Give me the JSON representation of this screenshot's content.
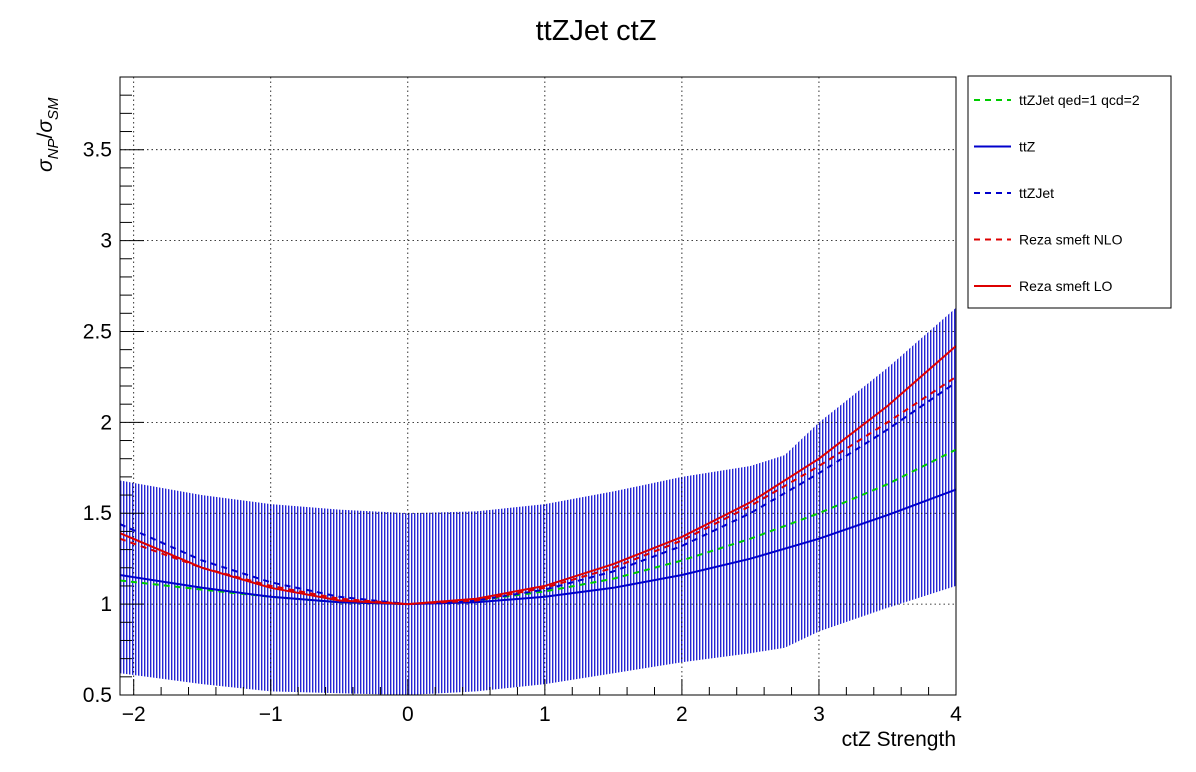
{
  "chart_data": {
    "type": "line",
    "title": "ttZJet ctZ",
    "xlabel": "ctZ Strength",
    "ylabel": {
      "main": "σ",
      "num_sub": "NP",
      "sep": "/",
      "den_sub": "SM",
      "den_main": "σ"
    },
    "xlim": [
      -2.1,
      4.0
    ],
    "ylim": [
      0.5,
      3.9
    ],
    "x_ticks": [
      -2,
      -1,
      0,
      1,
      2,
      3,
      4
    ],
    "x_tick_labels": [
      "−2",
      "−1",
      "0",
      "1",
      "2",
      "3",
      "4"
    ],
    "y_ticks": [
      0.5,
      1,
      1.5,
      2,
      2.5,
      3,
      3.5
    ],
    "y_tick_labels": [
      "0.5",
      "1",
      "1.5",
      "2",
      "2.5",
      "3",
      "3.5"
    ],
    "grid": true,
    "legend_position": "right",
    "band": {
      "color": "#0000cc",
      "x": [
        -2.1,
        -1.5,
        -1.0,
        -0.5,
        0.0,
        0.5,
        1.0,
        1.5,
        2.0,
        2.5,
        2.75,
        3.0,
        3.5,
        4.0
      ],
      "upper": [
        1.68,
        1.6,
        1.55,
        1.52,
        1.5,
        1.51,
        1.55,
        1.62,
        1.7,
        1.76,
        1.82,
        2.0,
        2.3,
        2.63
      ],
      "lower": [
        0.62,
        0.56,
        0.52,
        0.51,
        0.5,
        0.52,
        0.56,
        0.62,
        0.68,
        0.73,
        0.76,
        0.85,
        0.98,
        1.1
      ]
    },
    "series": [
      {
        "name": "ttZJet qed=1 qcd=2",
        "color": "#00cc00",
        "dash": "6,5",
        "x": [
          -2.1,
          -1.5,
          -1.0,
          -0.5,
          0.0,
          0.5,
          1.0,
          1.5,
          2.0,
          2.5,
          3.0,
          3.5,
          4.0
        ],
        "y": [
          1.13,
          1.08,
          1.04,
          1.01,
          1.0,
          1.02,
          1.07,
          1.14,
          1.24,
          1.36,
          1.5,
          1.66,
          1.85
        ]
      },
      {
        "name": "ttZ",
        "color": "#0000cc",
        "dash": "",
        "x": [
          -2.1,
          -1.5,
          -1.0,
          -0.5,
          0.0,
          0.5,
          1.0,
          1.5,
          2.0,
          2.5,
          3.0,
          3.5,
          4.0
        ],
        "y": [
          1.16,
          1.09,
          1.04,
          1.01,
          1.0,
          1.01,
          1.04,
          1.09,
          1.16,
          1.25,
          1.36,
          1.49,
          1.63
        ]
      },
      {
        "name": "ttZJet",
        "color": "#0000cc",
        "dash": "6,5",
        "x": [
          -2.1,
          -1.5,
          -1.0,
          -0.5,
          0.0,
          0.5,
          1.0,
          1.5,
          2.0,
          2.5,
          3.0,
          3.5,
          4.0
        ],
        "y": [
          1.44,
          1.24,
          1.12,
          1.04,
          1.0,
          1.02,
          1.08,
          1.18,
          1.32,
          1.5,
          1.72,
          1.96,
          2.22
        ]
      },
      {
        "name": "Reza smeft NLO",
        "color": "#dd0000",
        "dash": "6,5",
        "x": [
          -2.1,
          -1.5,
          -1.0,
          -0.5,
          0.0,
          0.5,
          1.0,
          1.5,
          2.0,
          2.5,
          3.0,
          3.5,
          4.0
        ],
        "y": [
          1.36,
          1.2,
          1.1,
          1.03,
          1.0,
          1.02,
          1.09,
          1.2,
          1.35,
          1.54,
          1.76,
          2.0,
          2.25
        ]
      },
      {
        "name": "Reza smeft LO",
        "color": "#dd0000",
        "dash": "",
        "x": [
          -2.1,
          -1.5,
          -1.0,
          -0.5,
          0.0,
          0.5,
          1.0,
          1.5,
          2.0,
          2.5,
          3.0,
          3.5,
          4.0
        ],
        "y": [
          1.39,
          1.2,
          1.09,
          1.02,
          1.0,
          1.03,
          1.1,
          1.22,
          1.37,
          1.56,
          1.8,
          2.09,
          2.42
        ]
      }
    ]
  }
}
